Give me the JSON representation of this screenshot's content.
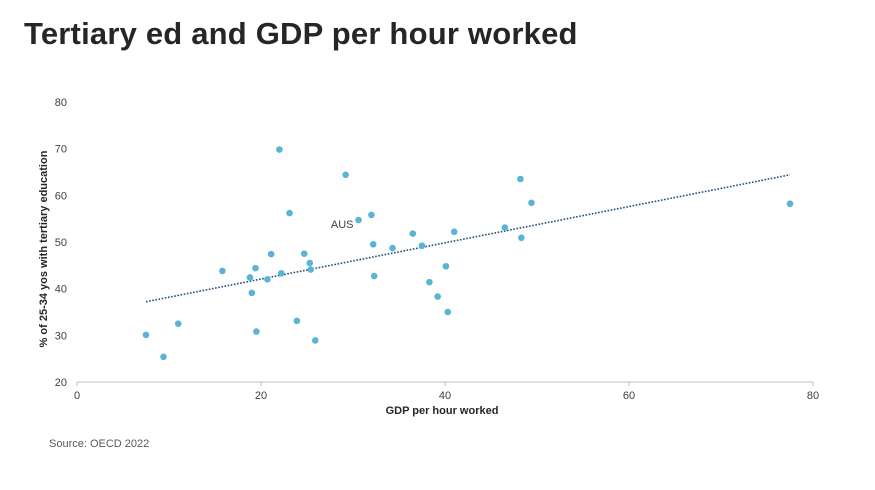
{
  "title": "Tertiary ed and GDP per hour worked",
  "source": "Source: OECD 2022",
  "colors": {
    "points": "#5ab4d6",
    "trendline": "#1f4e79",
    "axis": "#bfbfbf",
    "text": "#262626"
  },
  "chart_data": {
    "type": "scatter",
    "xlabel": "GDP per hour worked",
    "ylabel": "% of 25-34 yos with tertiary education",
    "xlim": [
      0,
      80
    ],
    "ylim": [
      20,
      80
    ],
    "xticks": [
      0,
      20,
      40,
      60,
      80
    ],
    "yticks": [
      20,
      30,
      40,
      50,
      60,
      70,
      80
    ],
    "grid": false,
    "series": [
      {
        "x": [
          7.5,
          9.4,
          11.0,
          15.8,
          18.8,
          19.0,
          19.4,
          19.5,
          20.7,
          21.1,
          22.0,
          22.2,
          23.1,
          23.9,
          24.7,
          25.3,
          25.4,
          25.9,
          29.2,
          30.6,
          32.0,
          32.2,
          32.3,
          34.3,
          36.5,
          37.5,
          38.3,
          39.2,
          40.1,
          40.3,
          41.0,
          46.5,
          48.2,
          48.3,
          49.4,
          77.5
        ],
        "y": [
          30.1,
          25.4,
          32.5,
          43.8,
          42.4,
          39.1,
          44.4,
          30.8,
          42.0,
          47.4,
          69.8,
          43.3,
          56.2,
          33.1,
          47.5,
          45.5,
          44.1,
          28.9,
          64.4,
          54.7,
          55.8,
          49.5,
          42.7,
          48.7,
          51.8,
          49.2,
          41.4,
          38.3,
          44.8,
          35.0,
          52.2,
          53.1,
          63.5,
          50.9,
          58.4,
          58.2
        ]
      }
    ],
    "trendline": {
      "type": "linear",
      "x": [
        7.5,
        77.5
      ],
      "y": [
        37.2,
        64.4
      ]
    },
    "annotations": [
      {
        "text": "AUS",
        "x": 30.6,
        "y": 54.7
      }
    ]
  }
}
